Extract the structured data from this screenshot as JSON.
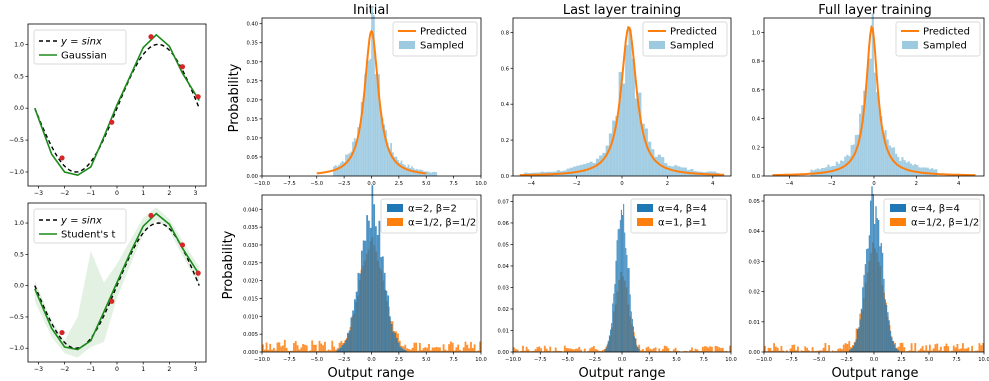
{
  "figure": {
    "titles": [
      "Initial",
      "Last layer training",
      "Full layer training"
    ],
    "ylabel": "Probability",
    "xlabel": "Output range"
  },
  "colors": {
    "gaussian": "#1b8a1b",
    "reference": "#000000",
    "points": "#d62728",
    "predicted": "#ff7f0e",
    "sampled": "#9ecae1",
    "blue": "#1f77b4",
    "orange": "#ff7f0e"
  },
  "chart_data": [
    {
      "id": "left-top",
      "type": "line",
      "xlim": [
        -3.4,
        3.4
      ],
      "ylim": [
        -1.22,
        1.32
      ],
      "xticks": [
        -3,
        -2,
        -1,
        0,
        1,
        2,
        3
      ],
      "yticks": [
        -1.0,
        -0.5,
        0.0,
        0.5,
        1.0
      ],
      "legend": {
        "placement": "top-left",
        "entries": [
          "y = sinx",
          "Gaussian"
        ]
      },
      "reference": "y = sin x",
      "observations": {
        "x": [
          -2.1,
          -0.2,
          1.3,
          2.5,
          3.1
        ],
        "y": [
          -0.78,
          -0.22,
          1.12,
          0.65,
          0.18
        ]
      },
      "fit": {
        "x": [
          -3.14,
          -2.5,
          -2.0,
          -1.5,
          -1.0,
          -0.5,
          0.0,
          0.5,
          1.0,
          1.5,
          2.0,
          2.5,
          3.14
        ],
        "y": [
          0.0,
          -0.72,
          -1.0,
          -1.05,
          -0.92,
          -0.45,
          0.05,
          0.5,
          0.95,
          1.15,
          0.97,
          0.55,
          0.12
        ]
      }
    },
    {
      "id": "left-bottom",
      "type": "line",
      "xlim": [
        -3.4,
        3.4
      ],
      "ylim": [
        -1.22,
        1.32
      ],
      "xticks": [
        -3,
        -2,
        -1,
        0,
        1,
        2,
        3
      ],
      "yticks": [
        -1.0,
        -0.5,
        0.0,
        0.5,
        1.0
      ],
      "legend": {
        "placement": "top-left",
        "entries": [
          "y = sinx",
          "Student's t"
        ]
      },
      "reference": "y = sin x",
      "observations": {
        "x": [
          -2.1,
          -0.2,
          1.3,
          2.5,
          3.1
        ],
        "y": [
          -0.75,
          -0.25,
          1.12,
          0.65,
          0.2
        ]
      },
      "fit": {
        "x": [
          -3.14,
          -2.5,
          -2.0,
          -1.5,
          -1.0,
          -0.5,
          0.0,
          0.5,
          1.0,
          1.5,
          2.0,
          2.5,
          3.14
        ],
        "y": [
          -0.05,
          -0.68,
          -0.98,
          -1.02,
          -0.88,
          -0.42,
          0.05,
          0.52,
          0.95,
          1.15,
          0.98,
          0.6,
          0.18
        ]
      },
      "band": {
        "x": [
          -3.14,
          -2.5,
          -2.0,
          -1.5,
          -1.0,
          -0.5,
          0.0,
          0.5,
          1.0,
          1.5,
          2.0,
          2.5,
          3.14
        ],
        "lower": [
          -0.25,
          -0.82,
          -1.08,
          -1.15,
          -0.98,
          -0.9,
          -0.2,
          0.32,
          0.82,
          1.05,
          0.88,
          0.48,
          0.0
        ],
        "upper": [
          0.08,
          -0.55,
          -0.88,
          -0.5,
          0.55,
          0.05,
          0.35,
          0.72,
          1.08,
          1.25,
          1.06,
          0.72,
          0.3
        ]
      }
    },
    {
      "id": "initial-top",
      "type": "bar",
      "title": "Initial",
      "ylabel": "Probability",
      "xlim": [
        -10,
        10
      ],
      "ylim": [
        0,
        0.415
      ],
      "xticks": [
        -10.0,
        -7.5,
        -5.0,
        -2.5,
        0.0,
        2.5,
        5.0,
        7.5,
        10.0
      ],
      "xtick_labels": [
        "−10.0",
        "−7.5",
        "−5.0",
        "−2.5",
        "0.0",
        "2.5",
        "5.0",
        "7.5",
        "10.0"
      ],
      "yticks": [
        0.0,
        0.05,
        0.1,
        0.15,
        0.2,
        0.25,
        0.3,
        0.35,
        0.4
      ],
      "ytick_labels": [
        "0.00",
        "0.05",
        "0.10",
        "0.15",
        "0.20",
        "0.25",
        "0.30",
        "0.35",
        "0.40"
      ],
      "legend": {
        "placement": "top-right",
        "entries": [
          "Predicted",
          "Sampled"
        ]
      },
      "sampled": {
        "scale": 0.38,
        "mu": 0.0,
        "alpha": 0.92,
        "spread": 0.8,
        "range": [
          -3.5,
          6
        ]
      },
      "predicted": {
        "scale": 0.38,
        "mu": 0.0,
        "alpha": 1.1,
        "spread": 0.82,
        "range": [
          -5,
          5
        ]
      }
    },
    {
      "id": "last-top",
      "type": "bar",
      "title": "Last layer training",
      "xlim": [
        -4.8,
        4.8
      ],
      "ylim": [
        0,
        0.88
      ],
      "xticks": [
        -4,
        -2,
        0,
        2,
        4
      ],
      "xtick_labels": [
        "−4",
        "−2",
        "0",
        "2",
        "4"
      ],
      "yticks": [
        0.0,
        0.2,
        0.4,
        0.6,
        0.8
      ],
      "ytick_labels": [
        "0.0",
        "0.2",
        "0.4",
        "0.6",
        "0.8"
      ],
      "legend": {
        "placement": "top-right",
        "entries": [
          "Predicted",
          "Sampled"
        ]
      },
      "sampled": {
        "scale": 0.8,
        "mu": 0.3,
        "alpha": 0.82,
        "spread": 0.41,
        "range": [
          -4.3,
          4.3
        ]
      },
      "predicted": {
        "scale": 0.83,
        "mu": 0.3,
        "alpha": 1.05,
        "spread": 0.42,
        "range": [
          -4.5,
          4.5
        ]
      }
    },
    {
      "id": "full-top",
      "type": "bar",
      "title": "Full layer training",
      "xlim": [
        -5.2,
        5.2
      ],
      "ylim": [
        0,
        1.1
      ],
      "xticks": [
        -4,
        -2,
        0,
        2,
        4
      ],
      "xtick_labels": [
        "−4",
        "−2",
        "0",
        "2",
        "4"
      ],
      "yticks": [
        0.0,
        0.2,
        0.4,
        0.6,
        0.8,
        1.0
      ],
      "ytick_labels": [
        "0.0",
        "0.2",
        "0.4",
        "0.6",
        "0.8",
        "1.0"
      ],
      "legend": {
        "placement": "top-right",
        "entries": [
          "Predicted",
          "Sampled"
        ]
      },
      "sampled": {
        "scale": 1.0,
        "mu": -0.1,
        "alpha": 0.7,
        "spread": 0.31,
        "range": [
          -3,
          3
        ]
      },
      "predicted": {
        "scale": 1.04,
        "mu": -0.1,
        "alpha": 0.95,
        "spread": 0.32,
        "range": [
          -4.8,
          4.8
        ]
      }
    },
    {
      "id": "initial-bottom",
      "type": "bar",
      "ylabel": "Probability",
      "xlabel": "Output range",
      "xlim": [
        -10,
        10
      ],
      "ylim": [
        0,
        0.044
      ],
      "xticks": [
        -10.0,
        -7.5,
        -5.0,
        -2.5,
        0.0,
        2.5,
        5.0,
        7.5,
        10.0
      ],
      "xtick_labels": [
        "−10.0",
        "−7.5",
        "−5.0",
        "−2.5",
        "0.0",
        "2.5",
        "5.0",
        "7.5",
        "10.0"
      ],
      "yticks": [
        0.0,
        0.005,
        0.01,
        0.015,
        0.02,
        0.025,
        0.03,
        0.035,
        0.04
      ],
      "ytick_labels": [
        "0.000",
        "0.005",
        "0.010",
        "0.015",
        "0.020",
        "0.025",
        "0.030",
        "0.035",
        "0.040"
      ],
      "legend": {
        "placement": "top-right",
        "entries": [
          "α=2,  β=2",
          "α=1/2, β=1/2"
        ]
      },
      "series_a": {
        "peak": 0.041,
        "mu": 0.0,
        "spread": 1.05,
        "range": [
          -4,
          4
        ]
      },
      "series_b": {
        "peak": 0.029,
        "mu": 0.0,
        "spread": 1.1,
        "tail": 0.0035
      }
    },
    {
      "id": "last-bottom",
      "type": "bar",
      "xlabel": "Output range",
      "xlim": [
        -10,
        10
      ],
      "ylim": [
        0,
        0.073
      ],
      "xticks": [
        -10.0,
        -7.5,
        -5.0,
        -2.5,
        0.0,
        2.5,
        5.0,
        7.5,
        10.0
      ],
      "xtick_labels": [
        "−10.0",
        "−7.5",
        "−5.0",
        "−2.5",
        "0.0",
        "2.5",
        "5.0",
        "7.5",
        "10.0"
      ],
      "yticks": [
        0.0,
        0.01,
        0.02,
        0.03,
        0.04,
        0.05,
        0.06,
        0.07
      ],
      "ytick_labels": [
        "0.00",
        "0.01",
        "0.02",
        "0.03",
        "0.04",
        "0.05",
        "0.06",
        "0.07"
      ],
      "legend": {
        "placement": "top-right",
        "entries": [
          "α=4,  β=4",
          "α=1,  β=1"
        ]
      },
      "series_a": {
        "peak": 0.069,
        "mu": 0.0,
        "spread": 0.55,
        "range": [
          -2.5,
          2.5
        ]
      },
      "series_b": {
        "peak": 0.035,
        "mu": 0.0,
        "spread": 0.6,
        "tail": 0.003
      }
    },
    {
      "id": "full-bottom",
      "type": "bar",
      "xlabel": "Output range",
      "xlim": [
        -10,
        10
      ],
      "ylim": [
        0,
        0.052
      ],
      "xticks": [
        -10.0,
        -7.5,
        -5.0,
        -2.5,
        0.0,
        2.5,
        5.0,
        7.5,
        10.0
      ],
      "xtick_labels": [
        "−10.0",
        "−7.5",
        "−5.0",
        "−2.5",
        "0.0",
        "2.5",
        "5.0",
        "7.5",
        "10.0"
      ],
      "yticks": [
        0.0,
        0.01,
        0.02,
        0.03,
        0.04,
        0.05
      ],
      "ytick_labels": [
        "0.00",
        "0.01",
        "0.02",
        "0.03",
        "0.04",
        "0.05"
      ],
      "legend": {
        "placement": "top-right",
        "entries": [
          "α=4,  β=4",
          "α=1/2, β=1/2"
        ]
      },
      "series_a": {
        "peak": 0.05,
        "mu": 0.0,
        "spread": 0.75,
        "range": [
          -3,
          3
        ]
      },
      "series_b": {
        "peak": 0.034,
        "mu": 0.0,
        "spread": 0.8,
        "tail": 0.003
      }
    }
  ]
}
